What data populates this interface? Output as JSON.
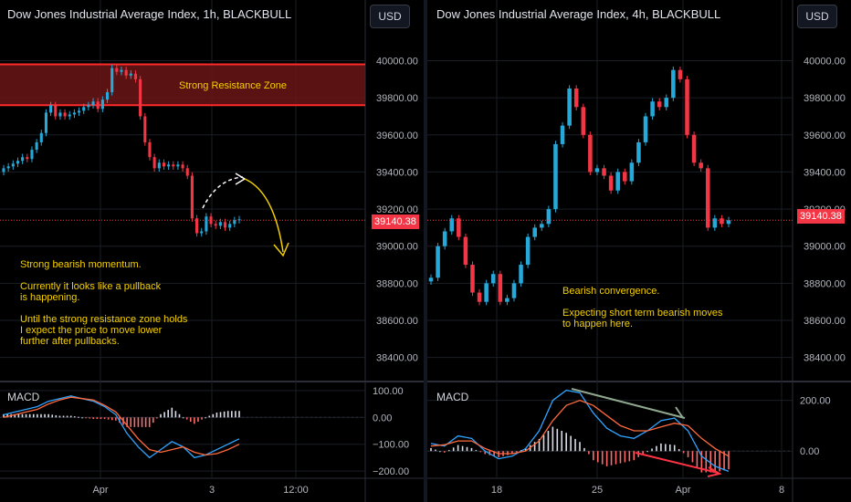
{
  "colors": {
    "up": "#26a8d8",
    "down": "#f23645",
    "grid": "#1b1e26",
    "zone_fill": "#6b1516",
    "zone_border": "#ff2a2a",
    "macd_line": "#2fa4ff",
    "signal_line": "#ff6a3d",
    "note_text": "#f5d000"
  },
  "left": {
    "title": "Dow Jones Industrial Average Index, 1h, BLACKBULL",
    "currency_button": "USD",
    "zone_label": "Strong Resistance Zone",
    "current_price": "39140.38",
    "notes": [
      "Strong bearish momentum.",
      "Currently it looks like a pullback\nis happening.",
      "Until the strong resistance zone holds\nI expect the price to move lower\nfurther after pullbacks."
    ],
    "macd_label": "MACD",
    "price_ticks": [
      "40000.00",
      "39800.00",
      "39600.00",
      "39400.00",
      "39200.00",
      "39000.00",
      "38800.00",
      "38600.00",
      "38400.00"
    ],
    "macd_ticks": [
      "100.00",
      "0.00",
      "−100.00",
      "−200.00"
    ],
    "time_ticks": [
      "Apr",
      "3",
      "12:00"
    ]
  },
  "right": {
    "title": "Dow Jones Industrial Average Index, 4h, BLACKBULL",
    "currency_button": "USD",
    "current_price": "39140.38",
    "notes": [
      "Bearish convergence.",
      "Expecting short term bearish moves\nto happen here."
    ],
    "macd_label": "MACD",
    "price_ticks": [
      "40000.00",
      "39800.00",
      "39600.00",
      "39400.00",
      "39200.00",
      "39000.00",
      "38800.00",
      "38600.00",
      "38400.00"
    ],
    "macd_ticks": [
      "200.00",
      "0.00"
    ],
    "time_ticks": [
      "18",
      "25",
      "Apr",
      "8"
    ]
  },
  "chart_data": [
    {
      "type": "line",
      "title": "Dow Jones Industrial Average Index, 1h, BLACKBULL",
      "price_axis": "right",
      "ylim": [
        38300,
        40150
      ],
      "x_ticks": [
        "Apr",
        "3",
        "12:00"
      ],
      "resistance_zone": {
        "label": "Strong Resistance Zone",
        "from": 39760,
        "to": 39980
      },
      "current_price": 39140.38,
      "close": [
        39420,
        39430,
        39445,
        39460,
        39480,
        39470,
        39520,
        39560,
        39610,
        39720,
        39760,
        39700,
        39720,
        39700,
        39710,
        39720,
        39730,
        39750,
        39760,
        39780,
        39740,
        39790,
        39830,
        39960,
        39940,
        39950,
        39920,
        39930,
        39900,
        39700,
        39560,
        39480,
        39420,
        39450,
        39430,
        39440,
        39430,
        39440,
        39420,
        39380,
        39150,
        39070,
        39080,
        39160,
        39120,
        39110,
        39130,
        39100,
        39120,
        39140,
        39145
      ],
      "macd": {
        "series": [
          {
            "name": "MACD",
            "values": [
              10,
              20,
              30,
              40,
              60,
              70,
              80,
              70,
              60,
              40,
              10,
              -60,
              -110,
              -150,
              -120,
              -90,
              -110,
              -150,
              -140,
              -120,
              -100,
              -80
            ]
          },
          {
            "name": "Signal",
            "values": [
              0,
              10,
              20,
              30,
              50,
              65,
              75,
              70,
              65,
              45,
              20,
              -30,
              -80,
              -120,
              -130,
              -120,
              -110,
              -130,
              -140,
              -135,
              -120,
              -100
            ]
          }
        ],
        "ylim": [
          -220,
          120
        ]
      }
    },
    {
      "type": "line",
      "title": "Dow Jones Industrial Average Index, 4h, BLACKBULL",
      "price_axis": "right",
      "ylim": [
        38300,
        40150
      ],
      "x_ticks": [
        "18",
        "25",
        "Apr",
        "8"
      ],
      "current_price": 39140.38,
      "close": [
        38830,
        39000,
        39080,
        39150,
        39050,
        38900,
        38750,
        38700,
        38800,
        38850,
        38700,
        38720,
        38800,
        38900,
        39050,
        39100,
        39120,
        39200,
        39550,
        39650,
        39850,
        39750,
        39600,
        39400,
        39420,
        39380,
        39300,
        39400,
        39350,
        39450,
        39560,
        39700,
        39780,
        39750,
        39800,
        39950,
        39900,
        39600,
        39450,
        39420,
        39100,
        39150,
        39120,
        39140
      ],
      "macd": {
        "series": [
          {
            "name": "MACD",
            "values": [
              30,
              20,
              60,
              50,
              0,
              -30,
              -20,
              10,
              80,
              200,
              240,
              230,
              150,
              90,
              60,
              50,
              80,
              120,
              130,
              80,
              -20,
              -60,
              -80
            ]
          },
          {
            "name": "Signal",
            "values": [
              20,
              25,
              40,
              40,
              10,
              -10,
              -10,
              0,
              40,
              120,
              180,
              200,
              180,
              140,
              100,
              80,
              80,
              95,
              110,
              100,
              50,
              10,
              -20
            ]
          }
        ],
        "ylim": [
          -100,
          260
        ],
        "annotations": [
          "bearish convergence trendline on MACD highs",
          "falling red arrow on histogram"
        ]
      }
    }
  ]
}
